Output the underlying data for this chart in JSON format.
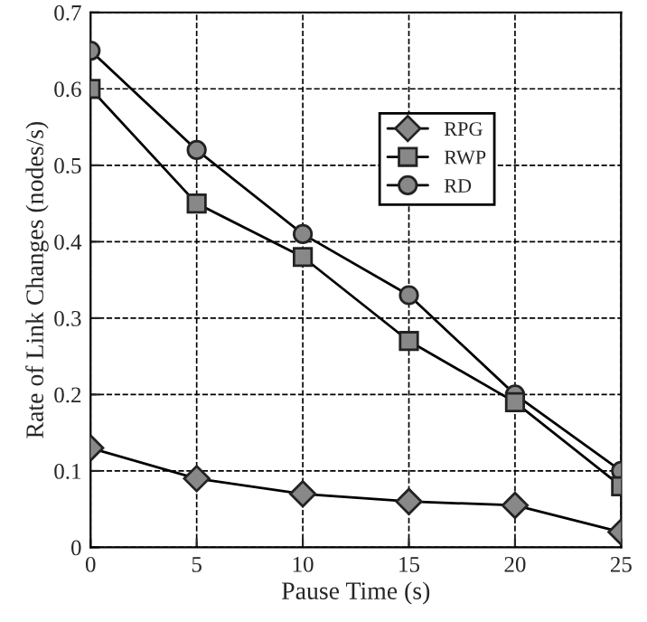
{
  "chart_data": {
    "type": "line",
    "xlabel": "Pause Time (s)",
    "ylabel": "Rate of Link Changes (nodes/s)",
    "x": [
      0,
      5,
      10,
      15,
      20,
      25
    ],
    "series": [
      {
        "name": "RPG",
        "color": "#000000",
        "marker": "diamond",
        "values": [
          0.13,
          0.09,
          0.07,
          0.06,
          0.055,
          0.02
        ]
      },
      {
        "name": "RWP",
        "color": "#000000",
        "marker": "square",
        "values": [
          0.6,
          0.45,
          0.38,
          0.27,
          0.19,
          0.08
        ]
      },
      {
        "name": "RD",
        "color": "#000000",
        "marker": "circle",
        "values": [
          0.65,
          0.52,
          0.41,
          0.33,
          0.2,
          0.1
        ]
      }
    ],
    "xlim": [
      0,
      25
    ],
    "ylim": [
      0,
      0.7
    ],
    "xticks": [
      0,
      5,
      10,
      15,
      20,
      25
    ],
    "yticks": [
      0,
      0.1,
      0.2,
      0.3,
      0.4,
      0.5,
      0.6,
      0.7
    ],
    "grid": true,
    "legend": "top right",
    "line_style": "solid"
  }
}
